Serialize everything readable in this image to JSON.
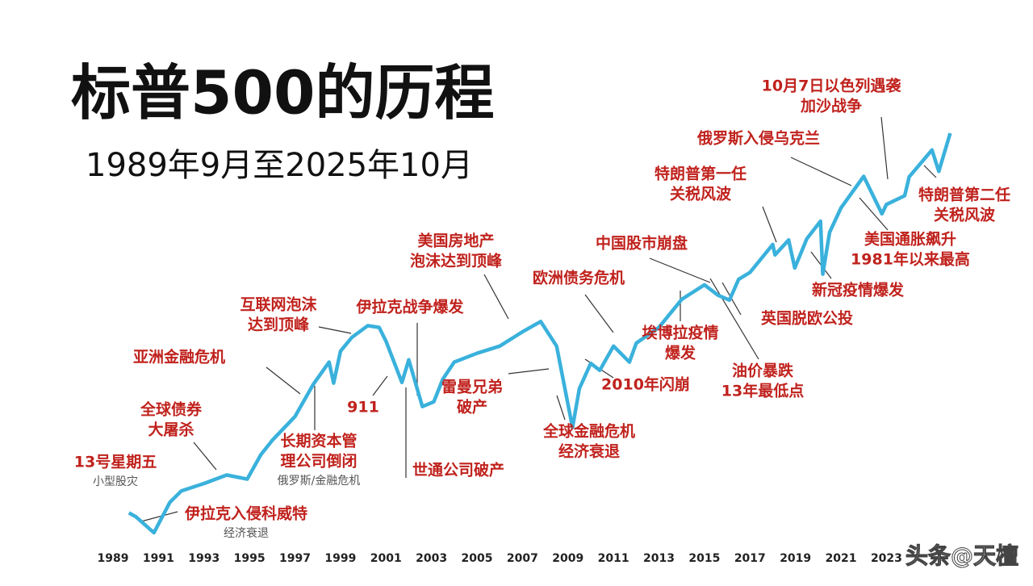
{
  "chart_data": {
    "type": "line",
    "title": "标普500的历程",
    "subtitle": "1989年9月至2025年10月",
    "log_scale": true,
    "grid": false,
    "color": "#3ab1dc",
    "x": [
      1989.7,
      1990.0,
      1990.8,
      1991.5,
      1992.0,
      1993.0,
      1994.0,
      1994.9,
      1995.5,
      1996.0,
      1997.0,
      1997.8,
      1998.5,
      1998.7,
      1999.0,
      1999.5,
      2000.2,
      2000.7,
      2001.0,
      2001.7,
      2002.0,
      2002.6,
      2003.1,
      2003.5,
      2004.0,
      2005.0,
      2006.0,
      2007.0,
      2007.8,
      2008.5,
      2009.2,
      2009.5,
      2010.0,
      2010.4,
      2011.0,
      2011.7,
      2012.0,
      2013.0,
      2014.0,
      2015.0,
      2015.6,
      2016.1,
      2016.5,
      2017.0,
      2018.0,
      2018.1,
      2018.7,
      2018.97,
      2019.5,
      2020.1,
      2020.2,
      2020.5,
      2021.0,
      2022.0,
      2022.8,
      2023.0,
      2023.8,
      2024.0,
      2025.0,
      2025.3,
      2025.8
    ],
    "values": [
      350,
      340,
      300,
      380,
      415,
      440,
      470,
      455,
      550,
      615,
      740,
      950,
      1130,
      960,
      1230,
      1370,
      1500,
      1480,
      1330,
      965,
      1150,
      800,
      830,
      990,
      1130,
      1210,
      1280,
      1430,
      1550,
      1280,
      680,
      920,
      1120,
      1060,
      1280,
      1130,
      1310,
      1480,
      1840,
      2060,
      1900,
      1830,
      2150,
      2270,
      2820,
      2600,
      2920,
      2350,
      2950,
      3380,
      2240,
      3100,
      3750,
      4790,
      3580,
      3850,
      4120,
      4770,
      5880,
      4980,
      6700
    ],
    "xlim": [
      1989,
      2026
    ],
    "ylim": [
      280,
      7500
    ],
    "xticks": [
      1989,
      1991,
      1993,
      1995,
      1997,
      1999,
      2001,
      2003,
      2005,
      2007,
      2009,
      2011,
      2013,
      2015,
      2017,
      2019,
      2021,
      2023
    ],
    "annotations": [
      {
        "text": [
          "13号星期五"
        ],
        "note": "小型股灾"
      },
      {
        "text": [
          "伊拉克入侵科威特"
        ],
        "note": "经济衰退"
      },
      {
        "text": [
          "全球债券",
          "大屠杀"
        ]
      },
      {
        "text": [
          "亚洲金融危机"
        ]
      },
      {
        "text": [
          "互联网泡沫",
          "达到顶峰"
        ]
      },
      {
        "text": [
          "长期资本管",
          "理公司倒闭"
        ],
        "note": "俄罗斯/金融危机"
      },
      {
        "text": [
          "911"
        ]
      },
      {
        "text": [
          "伊拉克战争爆发"
        ]
      },
      {
        "text": [
          "世通公司破产"
        ]
      },
      {
        "text": [
          "美国房地产",
          "泡沫达到顶峰"
        ]
      },
      {
        "text": [
          "雷曼兄弟",
          "破产"
        ]
      },
      {
        "text": [
          "全球金融危机",
          "经济衰退"
        ]
      },
      {
        "text": [
          "欧洲债务危机"
        ]
      },
      {
        "text": [
          "2010年闪崩"
        ]
      },
      {
        "text": [
          "中国股市崩盘"
        ]
      },
      {
        "text": [
          "埃博拉疫情",
          "爆发"
        ]
      },
      {
        "text": [
          "油价暴跌",
          "13年最低点"
        ]
      },
      {
        "text": [
          "英国脱欧公投"
        ]
      },
      {
        "text": [
          "特朗普第一任",
          "关税风波"
        ]
      },
      {
        "text": [
          "新冠疫情爆发"
        ]
      },
      {
        "text": [
          "俄罗斯入侵乌克兰"
        ]
      },
      {
        "text": [
          "美国通胀飙升",
          "1981年以来最高"
        ]
      },
      {
        "text": [
          "10月7日以色列遇袭",
          "加沙战争"
        ]
      },
      {
        "text": [
          "特朗普第二任",
          "关税风波"
        ]
      }
    ],
    "watermark": "头条@天檀"
  }
}
